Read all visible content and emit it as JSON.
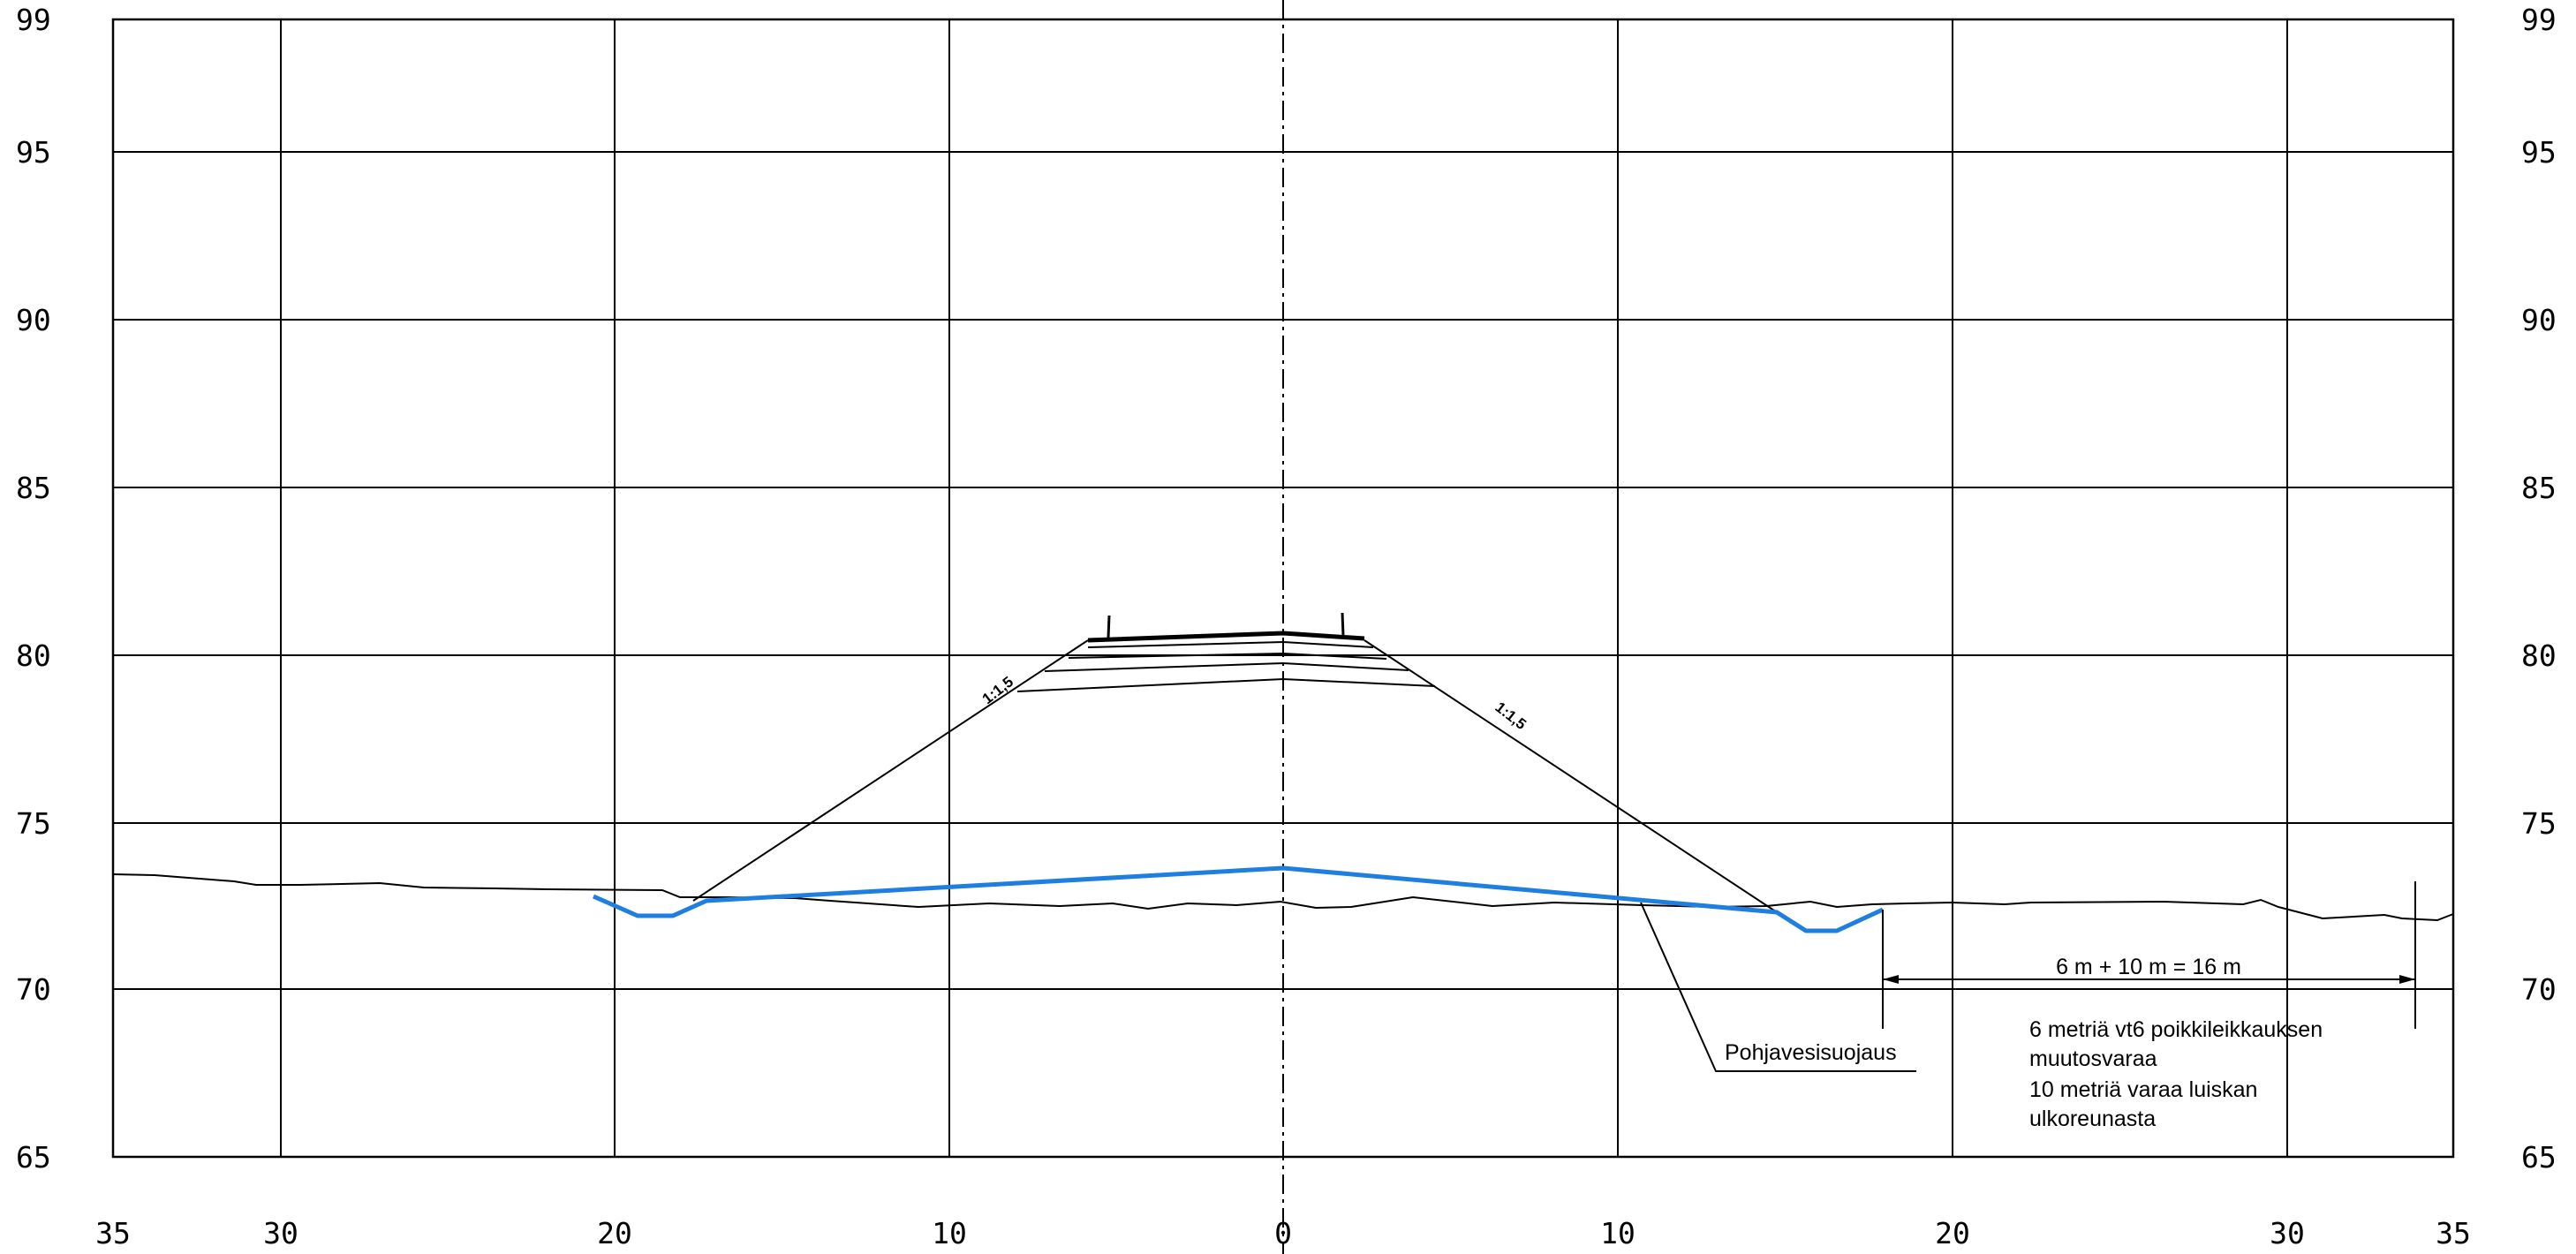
{
  "axes": {
    "y_ticks": [
      "99",
      "95",
      "90",
      "85",
      "80",
      "75",
      "70",
      "65"
    ],
    "x_ticks": [
      "35",
      "30",
      "20",
      "10",
      "0",
      "10",
      "20",
      "30",
      "35"
    ]
  },
  "slopes": {
    "left": "1:1,5",
    "right": "1:1,5"
  },
  "callout": {
    "label": "Pohjavesisuojaus"
  },
  "dimension": {
    "label": "6 m + 10 m = 16 m"
  },
  "notes": [
    "6 metriä vt6 poikkileikkauksen",
    "muutosvaraa",
    "10 metriä varaa luiskan",
    "ulkoreunasta"
  ],
  "colors": {
    "protection": "#1f7fe0",
    "lines": "#000000"
  }
}
